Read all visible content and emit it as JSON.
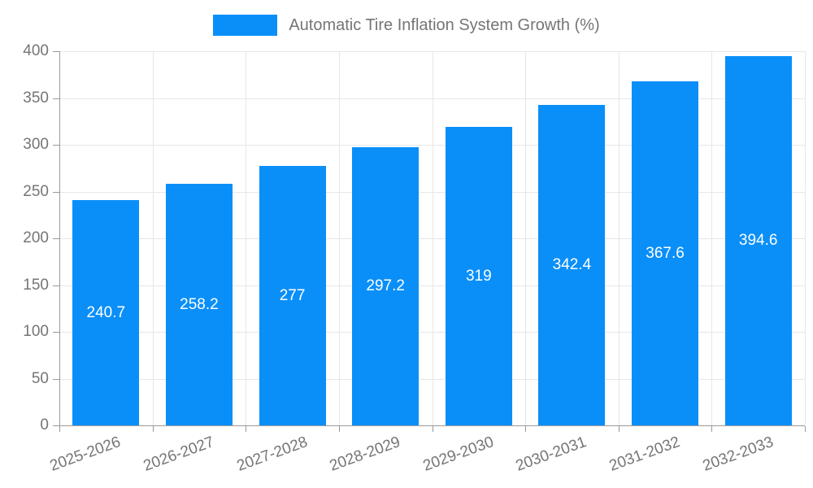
{
  "legend": {
    "series_label": "Automatic Tire Inflation System Growth (%)"
  },
  "chart_data": {
    "type": "bar",
    "title": "Automatic Tire Inflation System Growth (%)",
    "categories": [
      "2025-2026",
      "2026-2027",
      "2027-2028",
      "2028-2029",
      "2029-2030",
      "2030-2031",
      "2031-2032",
      "2032-2033"
    ],
    "values": [
      240.7,
      258.2,
      277,
      297.2,
      319,
      342.4,
      367.6,
      394.6
    ],
    "bar_labels": [
      "240.7",
      "258.2",
      "277",
      "297.2",
      "319",
      "342.4",
      "367.6",
      "394.6"
    ],
    "xlabel": "",
    "ylabel": "",
    "ylim": [
      0,
      400
    ],
    "yticks": [
      0,
      50,
      100,
      150,
      200,
      250,
      300,
      350,
      400
    ],
    "grid": true,
    "legend_position": "top-center",
    "colors": {
      "bar": "#0A8FF9",
      "grid": "#e6e6e6",
      "axis": "#9a9a9a",
      "text": "#757575",
      "bar_label": "#ffffff",
      "background": "#ffffff"
    }
  }
}
